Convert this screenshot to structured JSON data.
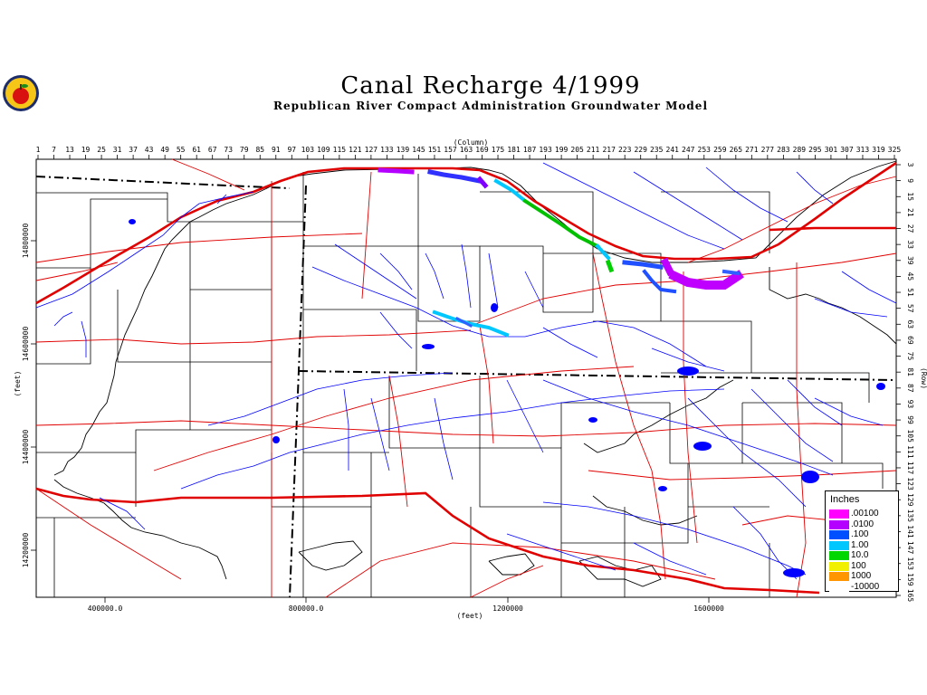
{
  "header": {
    "title": "Canal Recharge 4/1999",
    "subtitle": "Republican River Compact Administration Groundwater Model"
  },
  "axes": {
    "top_label": "(Column)",
    "right_label": "(Row)",
    "bottom_label": "(feet)",
    "left_label": "(feet)",
    "columns": [
      "1",
      "7",
      "13",
      "19",
      "25",
      "31",
      "37",
      "43",
      "49",
      "55",
      "61",
      "67",
      "73",
      "79",
      "85",
      "91",
      "97",
      "103",
      "109",
      "115",
      "121",
      "127",
      "133",
      "139",
      "145",
      "151",
      "157",
      "163",
      "169",
      "175",
      "181",
      "187",
      "193",
      "199",
      "205",
      "211",
      "217",
      "223",
      "229",
      "235",
      "241",
      "247",
      "253",
      "259",
      "265",
      "271",
      "277",
      "283",
      "289",
      "295",
      "301",
      "307",
      "313",
      "319",
      "325"
    ],
    "rows": [
      "3",
      "9",
      "15",
      "21",
      "27",
      "33",
      "39",
      "45",
      "51",
      "57",
      "63",
      "69",
      "75",
      "81",
      "87",
      "93",
      "99",
      "105",
      "111",
      "117",
      "123",
      "129",
      "135",
      "141",
      "147",
      "153",
      "159",
      "165"
    ],
    "x_ticks": [
      "400000.0",
      "800000.0",
      "1200000",
      "1600000"
    ],
    "y_ticks": [
      "14800000",
      "14600000",
      "14400000",
      "14200000"
    ]
  },
  "legend": {
    "title": "Inches",
    "items": [
      {
        "label": ".00100",
        "color": "#ff00ff"
      },
      {
        "label": ".0100",
        "color": "#b400ff"
      },
      {
        "label": ".100",
        "color": "#0050ff"
      },
      {
        "label": "1.00",
        "color": "#00c8ff"
      },
      {
        "label": "10.0",
        "color": "#00d700"
      },
      {
        "label": "100",
        "color": "#f0f000"
      },
      {
        "label": "1000",
        "color": "#ff9600"
      },
      {
        "label": "-10000",
        "color": "#ffffff"
      }
    ]
  },
  "colors": {
    "rivers": "#0000ff",
    "roads": "#ff0000",
    "major_road": "#e00000",
    "boundary": "#000000",
    "logo_icon": "apple-icon"
  }
}
